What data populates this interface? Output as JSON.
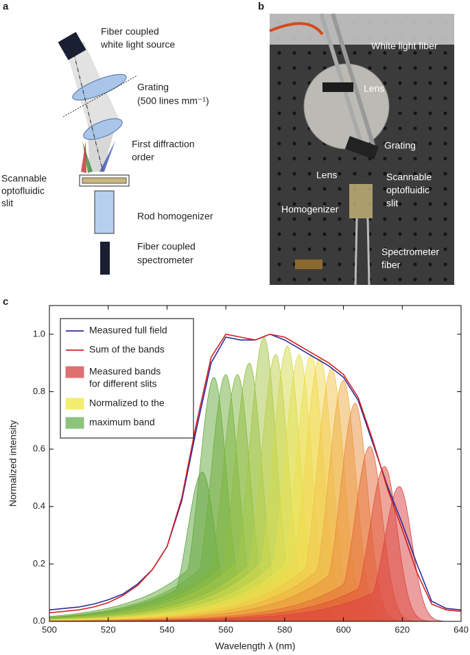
{
  "panel_a": {
    "letter": "a",
    "source": [
      "Fiber coupled",
      "white light source"
    ],
    "grating": [
      "Grating",
      "(500 lines mm⁻¹)"
    ],
    "order": [
      "First diffraction",
      "order"
    ],
    "slit": [
      "Scannable",
      "optofluidic",
      "slit"
    ],
    "rod": "Rod homogenizer",
    "spectrometer": [
      "Fiber coupled",
      "spectrometer"
    ]
  },
  "panel_b": {
    "letter": "b",
    "labels": [
      [
        "White light fiber"
      ],
      [
        "Lens"
      ],
      [
        "Grating"
      ],
      [
        "Lens"
      ],
      [
        "Scannable",
        "optofluidic",
        "slit"
      ],
      [
        "Homogenizer"
      ],
      [
        "Spectrometer",
        "fiber"
      ]
    ]
  },
  "panel_c": {
    "letter": "c"
  },
  "chart_data": {
    "type": "line",
    "xlabel": "Wavelength λ (nm)",
    "ylabel": "Normalized intensity",
    "xlim": [
      500,
      640
    ],
    "ylim": [
      0,
      1.1
    ],
    "xticks": [
      500,
      520,
      540,
      560,
      580,
      600,
      620,
      640
    ],
    "yticks": [
      {
        "value": 0,
        "label": "0.0"
      },
      0.2,
      0.4,
      0.6,
      0.8,
      {
        "value": 1,
        "label": "1.0"
      }
    ],
    "x": [
      500,
      505,
      510,
      515,
      520,
      525,
      530,
      535,
      540,
      545,
      550,
      555,
      560,
      565,
      570,
      575,
      580,
      585,
      590,
      595,
      600,
      605,
      610,
      615,
      620,
      625,
      630,
      635,
      640
    ],
    "series": [
      {
        "name": "Measured full field",
        "color": "#2b2b9c",
        "values": [
          0.04,
          0.045,
          0.05,
          0.06,
          0.075,
          0.095,
          0.13,
          0.18,
          0.26,
          0.42,
          0.67,
          0.9,
          0.99,
          0.98,
          0.98,
          1.0,
          0.98,
          0.95,
          0.92,
          0.89,
          0.85,
          0.77,
          0.62,
          0.47,
          0.34,
          0.2,
          0.07,
          0.045,
          0.04
        ]
      },
      {
        "name": "Sum of the bands",
        "color": "#d42020",
        "values": [
          0.03,
          0.035,
          0.04,
          0.05,
          0.065,
          0.09,
          0.125,
          0.18,
          0.26,
          0.43,
          0.69,
          0.92,
          1.0,
          0.99,
          0.98,
          1.0,
          0.99,
          0.96,
          0.93,
          0.9,
          0.86,
          0.78,
          0.63,
          0.46,
          0.32,
          0.17,
          0.06,
          0.04,
          0.035
        ]
      }
    ],
    "bands": [
      {
        "center": 552,
        "peak": 0.52,
        "color": "#5ba33b"
      },
      {
        "center": 556,
        "peak": 0.85,
        "color": "#63a83c"
      },
      {
        "center": 560,
        "peak": 0.86,
        "color": "#6fae3e"
      },
      {
        "center": 564,
        "peak": 0.86,
        "color": "#7fb640"
      },
      {
        "center": 568,
        "peak": 0.9,
        "color": "#90bd42"
      },
      {
        "center": 573,
        "peak": 0.99,
        "color": "#a3c545"
      },
      {
        "center": 577,
        "peak": 0.93,
        "color": "#bccf48"
      },
      {
        "center": 581,
        "peak": 0.96,
        "color": "#d2d94b"
      },
      {
        "center": 585,
        "peak": 0.93,
        "color": "#e3df4d"
      },
      {
        "center": 589,
        "peak": 0.93,
        "color": "#eee04e"
      },
      {
        "center": 592,
        "peak": 0.92,
        "color": "#f2d84c"
      },
      {
        "center": 596,
        "peak": 0.88,
        "color": "#f2c447"
      },
      {
        "center": 600,
        "peak": 0.84,
        "color": "#eeab42"
      },
      {
        "center": 604,
        "peak": 0.76,
        "color": "#e98d3c"
      },
      {
        "center": 609,
        "peak": 0.61,
        "color": "#e46a37"
      },
      {
        "center": 614,
        "peak": 0.54,
        "color": "#df4e35"
      },
      {
        "center": 619,
        "peak": 0.47,
        "color": "#d94040"
      }
    ],
    "legend_patches": [
      {
        "color": "#e07070",
        "lines": [
          "Measured bands",
          "for different slits"
        ]
      },
      {
        "color": "#f3ee70",
        "lines": [
          "Normalized to the"
        ]
      },
      {
        "color": "#8cc47c",
        "lines": [
          "maximum band"
        ]
      }
    ]
  }
}
